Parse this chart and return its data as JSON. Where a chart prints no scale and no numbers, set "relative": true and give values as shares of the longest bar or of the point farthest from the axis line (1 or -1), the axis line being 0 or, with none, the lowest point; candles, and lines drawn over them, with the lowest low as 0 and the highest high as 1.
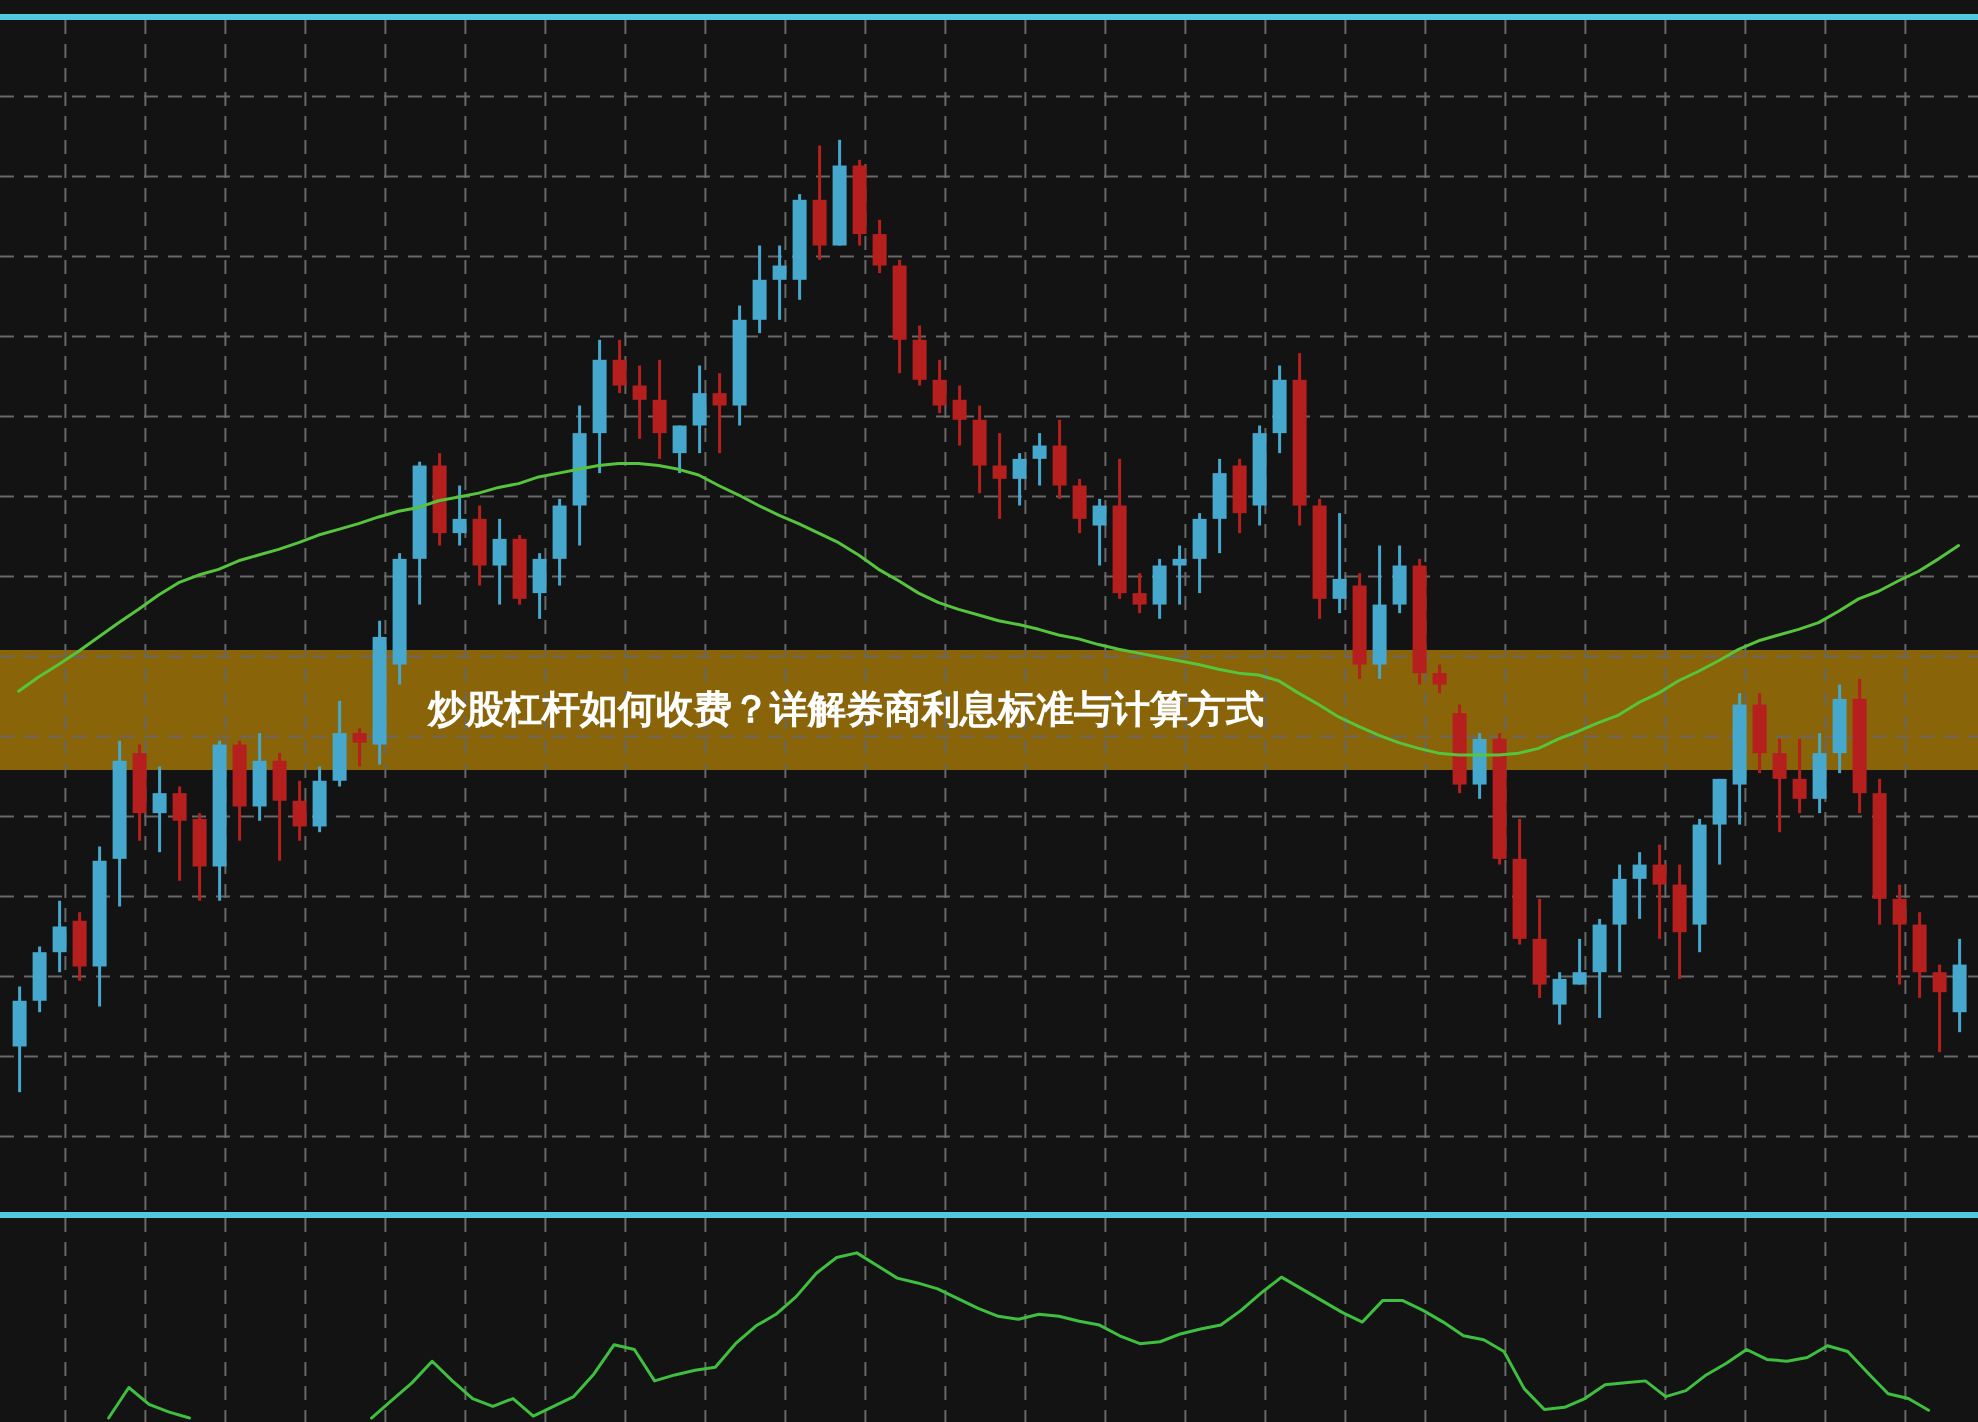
{
  "chart_data": [
    {
      "type": "candlestick",
      "title": "炒股杠杆如何收费？详解券商利息标准与计算方式",
      "relative": true,
      "grid": true,
      "categories": [
        null,
        null,
        null,
        null,
        null,
        null,
        null,
        null,
        null,
        null,
        null,
        null,
        null,
        null,
        null,
        null,
        null,
        null,
        null,
        null,
        null,
        null,
        null,
        null,
        null,
        null,
        null,
        null,
        null,
        null,
        null,
        null,
        null,
        null,
        null,
        null,
        null,
        null,
        null,
        null,
        null,
        null,
        null,
        null,
        null,
        null,
        null,
        null,
        null,
        null,
        null,
        null,
        null,
        null,
        null,
        null,
        null,
        null,
        null,
        null,
        null,
        null,
        null,
        null,
        null,
        null,
        null,
        null,
        null,
        null,
        null,
        null,
        null,
        null,
        null,
        null,
        null,
        null,
        null,
        null,
        null,
        null,
        null,
        null,
        null,
        null,
        null,
        null,
        null,
        null,
        null,
        null,
        null,
        null,
        null,
        null,
        null,
        null
      ],
      "ohlc": [
        [
          0.048,
          0.111,
          0,
          0.096
        ],
        [
          0.096,
          0.153,
          0.084,
          0.147
        ],
        [
          0.147,
          0.201,
          0.126,
          0.174
        ],
        [
          0.18,
          0.189,
          0.117,
          0.132
        ],
        [
          0.132,
          0.258,
          0.09,
          0.243
        ],
        [
          0.245,
          0.369,
          0.195,
          0.348
        ],
        [
          0.356,
          0.365,
          0.264,
          0.293
        ],
        [
          0.293,
          0.342,
          0.252,
          0.314
        ],
        [
          0.314,
          0.321,
          0.222,
          0.285
        ],
        [
          0.287,
          0.293,
          0.201,
          0.237
        ],
        [
          0.237,
          0.369,
          0.201,
          0.365
        ],
        [
          0.365,
          0.369,
          0.264,
          0.3
        ],
        [
          0.3,
          0.377,
          0.285,
          0.348
        ],
        [
          0.348,
          0.356,
          0.243,
          0.306
        ],
        [
          0.306,
          0.327,
          0.264,
          0.279
        ],
        [
          0.279,
          0.342,
          0.273,
          0.327
        ],
        [
          0.327,
          0.411,
          0.321,
          0.377
        ],
        [
          0.377,
          0.382,
          0.342,
          0.367
        ],
        [
          0.365,
          0.495,
          0.344,
          0.478
        ],
        [
          0.449,
          0.566,
          0.428,
          0.56
        ],
        [
          0.56,
          0.662,
          0.512,
          0.658
        ],
        [
          0.658,
          0.671,
          0.574,
          0.587
        ],
        [
          0.587,
          0.637,
          0.574,
          0.602
        ],
        [
          0.602,
          0.616,
          0.532,
          0.553
        ],
        [
          0.553,
          0.602,
          0.512,
          0.581
        ],
        [
          0.581,
          0.585,
          0.512,
          0.518
        ],
        [
          0.524,
          0.566,
          0.497,
          0.56
        ],
        [
          0.56,
          0.623,
          0.532,
          0.616
        ],
        [
          0.616,
          0.721,
          0.574,
          0.692
        ],
        [
          0.692,
          0.79,
          0.65,
          0.769
        ],
        [
          0.769,
          0.79,
          0.734,
          0.742
        ],
        [
          0.742,
          0.763,
          0.686,
          0.727
        ],
        [
          0.727,
          0.769,
          0.665,
          0.692
        ],
        [
          0.671,
          0.7,
          0.65,
          0.7
        ],
        [
          0.7,
          0.763,
          0.671,
          0.734
        ],
        [
          0.734,
          0.755,
          0.671,
          0.721
        ],
        [
          0.721,
          0.826,
          0.7,
          0.811
        ],
        [
          0.811,
          0.889,
          0.797,
          0.853
        ],
        [
          0.853,
          0.889,
          0.811,
          0.868
        ],
        [
          0.853,
          0.943,
          0.832,
          0.937
        ],
        [
          0.937,
          0.994,
          0.874,
          0.889
        ],
        [
          0.889,
          1,
          0.889,
          0.973
        ],
        [
          0.973,
          0.979,
          0.889,
          0.901
        ],
        [
          0.901,
          0.916,
          0.86,
          0.868
        ],
        [
          0.868,
          0.874,
          0.755,
          0.79
        ],
        [
          0.79,
          0.805,
          0.742,
          0.748
        ],
        [
          0.748,
          0.769,
          0.713,
          0.721
        ],
        [
          0.727,
          0.742,
          0.679,
          0.706
        ],
        [
          0.706,
          0.721,
          0.629,
          0.658
        ],
        [
          0.658,
          0.692,
          0.602,
          0.644
        ],
        [
          0.644,
          0.671,
          0.616,
          0.665
        ],
        [
          0.665,
          0.692,
          0.637,
          0.679
        ],
        [
          0.679,
          0.706,
          0.623,
          0.637
        ],
        [
          0.637,
          0.644,
          0.587,
          0.602
        ],
        [
          0.595,
          0.623,
          0.553,
          0.616
        ],
        [
          0.616,
          0.665,
          0.518,
          0.524
        ],
        [
          0.524,
          0.545,
          0.503,
          0.512
        ],
        [
          0.512,
          0.56,
          0.497,
          0.553
        ],
        [
          0.553,
          0.574,
          0.512,
          0.56
        ],
        [
          0.56,
          0.608,
          0.524,
          0.602
        ],
        [
          0.602,
          0.665,
          0.566,
          0.65
        ],
        [
          0.658,
          0.665,
          0.587,
          0.608
        ],
        [
          0.616,
          0.7,
          0.595,
          0.692
        ],
        [
          0.692,
          0.763,
          0.671,
          0.748
        ],
        [
          0.748,
          0.776,
          0.595,
          0.616
        ],
        [
          0.616,
          0.623,
          0.497,
          0.518
        ],
        [
          0.518,
          0.608,
          0.503,
          0.539
        ],
        [
          0.532,
          0.545,
          0.434,
          0.449
        ],
        [
          0.449,
          0.574,
          0.434,
          0.512
        ],
        [
          0.512,
          0.574,
          0.503,
          0.553
        ],
        [
          0.553,
          0.56,
          0.428,
          0.44
        ],
        [
          0.44,
          0.449,
          0.419,
          0.428
        ],
        [
          0.398,
          0.407,
          0.314,
          0.323
        ],
        [
          0.323,
          0.377,
          0.308,
          0.371
        ],
        [
          0.371,
          0.377,
          0.239,
          0.245
        ],
        [
          0.245,
          0.287,
          0.155,
          0.161
        ],
        [
          0.161,
          0.203,
          0.099,
          0.113
        ],
        [
          0.092,
          0.126,
          0.071,
          0.119
        ],
        [
          0.113,
          0.161,
          0.113,
          0.126
        ],
        [
          0.126,
          0.182,
          0.078,
          0.176
        ],
        [
          0.176,
          0.239,
          0.126,
          0.224
        ],
        [
          0.224,
          0.252,
          0.182,
          0.239
        ],
        [
          0.239,
          0.26,
          0.161,
          0.218
        ],
        [
          0.218,
          0.239,
          0.119,
          0.168
        ],
        [
          0.176,
          0.287,
          0.147,
          0.281
        ],
        [
          0.281,
          0.329,
          0.239,
          0.329
        ],
        [
          0.323,
          0.419,
          0.281,
          0.407
        ],
        [
          0.407,
          0.419,
          0.335,
          0.356
        ],
        [
          0.356,
          0.371,
          0.273,
          0.329
        ],
        [
          0.329,
          0.371,
          0.293,
          0.308
        ],
        [
          0.308,
          0.377,
          0.293,
          0.356
        ],
        [
          0.356,
          0.428,
          0.335,
          0.413
        ],
        [
          0.413,
          0.434,
          0.293,
          0.314
        ],
        [
          0.314,
          0.329,
          0.176,
          0.203
        ],
        [
          0.203,
          0.218,
          0.113,
          0.176
        ],
        [
          0.176,
          0.189,
          0.099,
          0.126
        ],
        [
          0.126,
          0.134,
          0.042,
          0.105
        ],
        [
          0.084,
          0.161,
          0.063,
          0.134
        ]
      ],
      "colors": [
        "#45a8cc",
        "#45a8cc",
        "#45a8cc",
        "#b5201e",
        "#45a8cc",
        "#45a8cc",
        "#b5201e",
        "#45a8cc",
        "#b5201e",
        "#b5201e",
        "#45a8cc",
        "#b5201e",
        "#45a8cc",
        "#b5201e",
        "#b5201e",
        "#45a8cc",
        "#45a8cc",
        "#b5201e",
        "#45a8cc",
        "#45a8cc",
        "#45a8cc",
        "#b5201e",
        "#45a8cc",
        "#b5201e",
        "#45a8cc",
        "#b5201e",
        "#45a8cc",
        "#45a8cc",
        "#45a8cc",
        "#45a8cc",
        "#b5201e",
        "#b5201e",
        "#b5201e",
        "#45a8cc",
        "#45a8cc",
        "#b5201e",
        "#45a8cc",
        "#45a8cc",
        "#45a8cc",
        "#45a8cc",
        "#b5201e",
        "#45a8cc",
        "#b5201e",
        "#b5201e",
        "#b5201e",
        "#b5201e",
        "#b5201e",
        "#b5201e",
        "#b5201e",
        "#b5201e",
        "#45a8cc",
        "#45a8cc",
        "#b5201e",
        "#b5201e",
        "#45a8cc",
        "#b5201e",
        "#b5201e",
        "#45a8cc",
        "#45a8cc",
        "#45a8cc",
        "#45a8cc",
        "#b5201e",
        "#45a8cc",
        "#45a8cc",
        "#b5201e",
        "#b5201e",
        "#45a8cc",
        "#b5201e",
        "#45a8cc",
        "#45a8cc",
        "#b5201e",
        "#b5201e",
        "#b5201e",
        "#45a8cc",
        "#b5201e",
        "#b5201e",
        "#b5201e",
        "#45a8cc",
        "#45a8cc",
        "#45a8cc",
        "#45a8cc",
        "#45a8cc",
        "#b5201e",
        "#b5201e",
        "#45a8cc",
        "#45a8cc",
        "#45a8cc",
        "#b5201e",
        "#b5201e",
        "#b5201e",
        "#45a8cc",
        "#45a8cc",
        "#b5201e",
        "#b5201e",
        "#b5201e",
        "#b5201e",
        "#b5201e",
        "#45a8cc"
      ],
      "series": [
        {
          "type": "line",
          "color": "#56c43c",
          "values": [
            0.421,
            0.436,
            0.449,
            0.463,
            0.478,
            0.493,
            0.507,
            0.522,
            0.535,
            0.543,
            0.549,
            0.558,
            0.564,
            0.57,
            0.577,
            0.585,
            0.591,
            0.597,
            0.604,
            0.61,
            0.614,
            0.621,
            0.625,
            0.629,
            0.635,
            0.639,
            0.646,
            0.65,
            0.654,
            0.658,
            0.66,
            0.66,
            0.658,
            0.654,
            0.648,
            0.637,
            0.627,
            0.616,
            0.606,
            0.597,
            0.587,
            0.577,
            0.564,
            0.549,
            0.537,
            0.524,
            0.514,
            0.507,
            0.501,
            0.495,
            0.491,
            0.486,
            0.48,
            0.476,
            0.47,
            0.465,
            0.461,
            0.457,
            0.453,
            0.449,
            0.444,
            0.44,
            0.438,
            0.432,
            0.419,
            0.407,
            0.394,
            0.384,
            0.375,
            0.367,
            0.361,
            0.356,
            0.354,
            0.354,
            0.354,
            0.356,
            0.361,
            0.371,
            0.379,
            0.388,
            0.396,
            0.409,
            0.419,
            0.432,
            0.442,
            0.453,
            0.465,
            0.474,
            0.48,
            0.486,
            0.493,
            0.505,
            0.518,
            0.526,
            0.537,
            0.547,
            0.56,
            0.574
          ]
        }
      ]
    },
    {
      "type": "line",
      "relative": true,
      "grid": "x",
      "categories": [
        null,
        null,
        null,
        null,
        null,
        null,
        null,
        null,
        null,
        null,
        null,
        null,
        null,
        null,
        null,
        null,
        null,
        null,
        null,
        null,
        null,
        null,
        null,
        null,
        null,
        null,
        null,
        null,
        null,
        null,
        null,
        null,
        null,
        null,
        null,
        null,
        null,
        null,
        null,
        null,
        null,
        null,
        null,
        null,
        null,
        null,
        null,
        null,
        null,
        null,
        null,
        null,
        null,
        null,
        null,
        null,
        null,
        null,
        null,
        null,
        null,
        null,
        null,
        null,
        null,
        null,
        null,
        null,
        null,
        null,
        null,
        null,
        null,
        null,
        null,
        null,
        null,
        null,
        null,
        null,
        null,
        null,
        null,
        null,
        null,
        null,
        null,
        null,
        null,
        null,
        null
      ],
      "series": [
        {
          "color": "#3fbf3f",
          "values": [
            0,
            0.185,
            0.083,
            0.036,
            0,
            null,
            null,
            null,
            null,
            null,
            null,
            null,
            null,
            null,
            null,
            null,
            null,
            null,
            null,
            null,
            null,
            null,
            null,
            null,
            null,
            null,
            null,
            null,
            null,
            null,
            null,
            null,
            null,
            null,
            null,
            null,
            null,
            null,
            null,
            null,
            null,
            null,
            null,
            null,
            null,
            null,
            null,
            null,
            null,
            null,
            null,
            null,
            null,
            null,
            null,
            null,
            null,
            null,
            null,
            null,
            null,
            null,
            null,
            null,
            null,
            null,
            null,
            null,
            null,
            null,
            null,
            null,
            null,
            null,
            null,
            null,
            null,
            null,
            null,
            null,
            null,
            null,
            null,
            null,
            null,
            null,
            null,
            null,
            null,
            null,
            null
          ]
        },
        {
          "color": "#3fbf3f",
          "values": [
            null,
            null,
            null,
            null,
            null,
            null,
            null,
            null,
            null,
            null,
            null,
            null,
            null,
            0,
            0.107,
            0.213,
            0.344,
            0.225,
            0.118,
            0.071,
            0.118,
            0.012,
            0.071,
            0.13,
            0.267,
            0.444,
            0.415,
            0.225,
            0.261,
            0.289,
            0.308,
            0.45,
            0.557,
            0.628,
            0.735,
            0.877,
            0.972,
            1,
            0.924,
            0.847,
            0.818,
            0.782,
            0.723,
            0.664,
            0.616,
            0.598,
            0.628,
            0.616,
            0.586,
            0.563,
            0.498,
            0.45,
            0.462,
            0.509,
            0.539,
            0.563,
            0.652,
            0.758,
            0.853,
            0.782,
            0.711,
            0.64,
            0.581,
            0.711,
            0.711,
            0.652,
            0.581,
            0.498,
            0.474,
            0.403,
            0.178,
            0.052,
            0.065,
            0.118,
            0.201,
            0.213,
            0.225,
            0.13,
            0.166,
            0.261,
            0.332,
            0.415,
            0.355,
            0.344,
            0.367,
            0.438,
            0.403,
            0.273,
            0.147,
            0.118,
            0.047
          ]
        }
      ]
    }
  ]
}
